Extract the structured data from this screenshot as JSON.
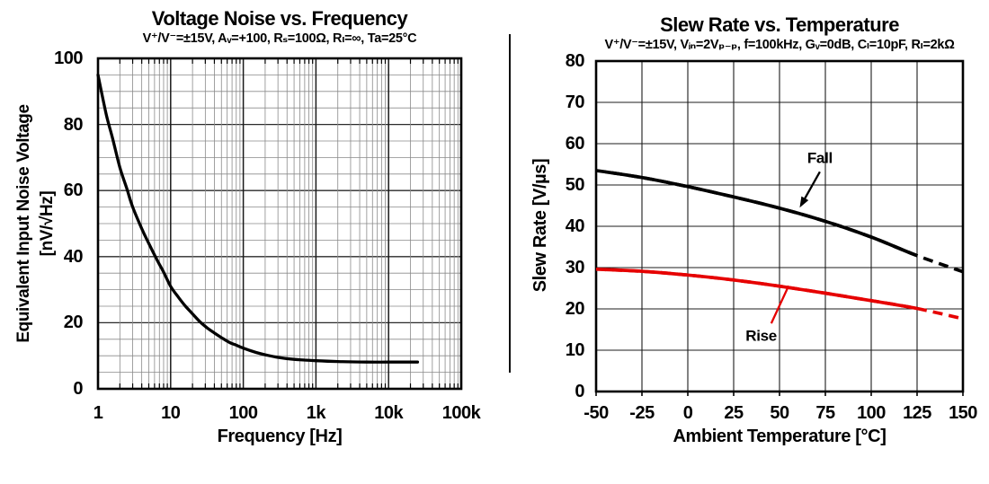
{
  "chart_data": [
    {
      "type": "line",
      "title": "Voltage Noise vs. Frequency",
      "subtitle": "V⁺/V⁻=±15V, Aᵥ=+100, Rₛ=100Ω, Rₗ=∞, Ta=25°C",
      "xlabel": "Frequency [Hz]",
      "ylabel": "Equivalent Input Noise Voltage [nV/√Hz]",
      "ylabel_lines": [
        "Equivalent Input Noise Voltage",
        "[nV/√Hz]"
      ],
      "x_scale": "log",
      "xlim": [
        1,
        100000
      ],
      "ylim": [
        0,
        100
      ],
      "x_tick_values": [
        1,
        10,
        100,
        1000,
        10000,
        100000
      ],
      "x_tick_labels": [
        "1",
        "10",
        "100",
        "1k",
        "10k",
        "100k"
      ],
      "y_tick_values": [
        0,
        20,
        40,
        60,
        80,
        100
      ],
      "y_minor_step": 5,
      "grid": "full log minor grid on x, minor lines every 5 on y, major every 20",
      "legend": "none",
      "series": [
        {
          "name": "Voltage Noise",
          "color": "#000000",
          "x": [
            1,
            1.3,
            1.6,
            2,
            2.5,
            3,
            4,
            5,
            6.5,
            8,
            10,
            13,
            16,
            20,
            25,
            32,
            40,
            50,
            65,
            80,
            100,
            150,
            200,
            300,
            500,
            700,
            1000,
            2000,
            5000,
            10000,
            25000
          ],
          "values": [
            95,
            83,
            75.5,
            67,
            60.5,
            55,
            48.5,
            44,
            39,
            35.3,
            31,
            27.5,
            25,
            22.7,
            20.4,
            18.4,
            16.9,
            15.5,
            14,
            13.2,
            12.3,
            11,
            10.3,
            9.5,
            8.9,
            8.7,
            8.5,
            8.25,
            8.1,
            8.1,
            8.1
          ]
        }
      ]
    },
    {
      "type": "line",
      "title": "Slew Rate vs. Temperature",
      "subtitle": "V⁺/V⁻=±15V, Vᵢₙ=2Vₚ₋ₚ, f=100kHz, Gᵥ=0dB, Cₗ=10pF, Rₗ=2kΩ",
      "xlabel": "Ambient Temperature [°C]",
      "ylabel": "Slew Rate [V/µs]",
      "x_scale": "linear",
      "xlim": [
        -50,
        150
      ],
      "ylim": [
        0,
        80
      ],
      "x_tick_values": [
        -50,
        -25,
        0,
        25,
        50,
        75,
        100,
        125,
        150
      ],
      "y_tick_values": [
        0,
        10,
        20,
        30,
        40,
        50,
        60,
        70,
        80
      ],
      "grid": "major grid only, x every 25, y every 10",
      "legend": "inline annotations with pointer lines",
      "series": [
        {
          "name": "Fall",
          "color": "#000000",
          "x": [
            -50,
            -25,
            0,
            25,
            50,
            75,
            100,
            125,
            150
          ],
          "values": [
            53.5,
            51.8,
            49.6,
            47.1,
            44.4,
            41.2,
            37.4,
            32.9,
            29.0
          ],
          "solid_x_range": [
            -45,
            125
          ],
          "ends_dashed": true
        },
        {
          "name": "Rise",
          "color": "#e60000",
          "x": [
            -50,
            -25,
            0,
            25,
            50,
            75,
            100,
            125,
            150
          ],
          "values": [
            29.6,
            29.1,
            28.2,
            27.0,
            25.5,
            23.8,
            22.0,
            20.1,
            17.6
          ],
          "solid_x_range": [
            -45,
            125
          ],
          "ends_dashed": true
        }
      ],
      "annotations": [
        {
          "text": "Fall",
          "text_color": "#000000",
          "line_color": "#000000",
          "text_x": 72,
          "text_y": 56.5,
          "line_from": [
            72,
            53.2
          ],
          "line_to": [
            61,
            44.5
          ],
          "arrowhead": true
        },
        {
          "text": "Rise",
          "text_color": "#000000",
          "line_color": "#e60000",
          "text_x": 40,
          "text_y": 13.5,
          "line_from": [
            45.5,
            16.5
          ],
          "line_to": [
            55,
            25.6
          ],
          "arrowhead": false
        }
      ]
    }
  ]
}
